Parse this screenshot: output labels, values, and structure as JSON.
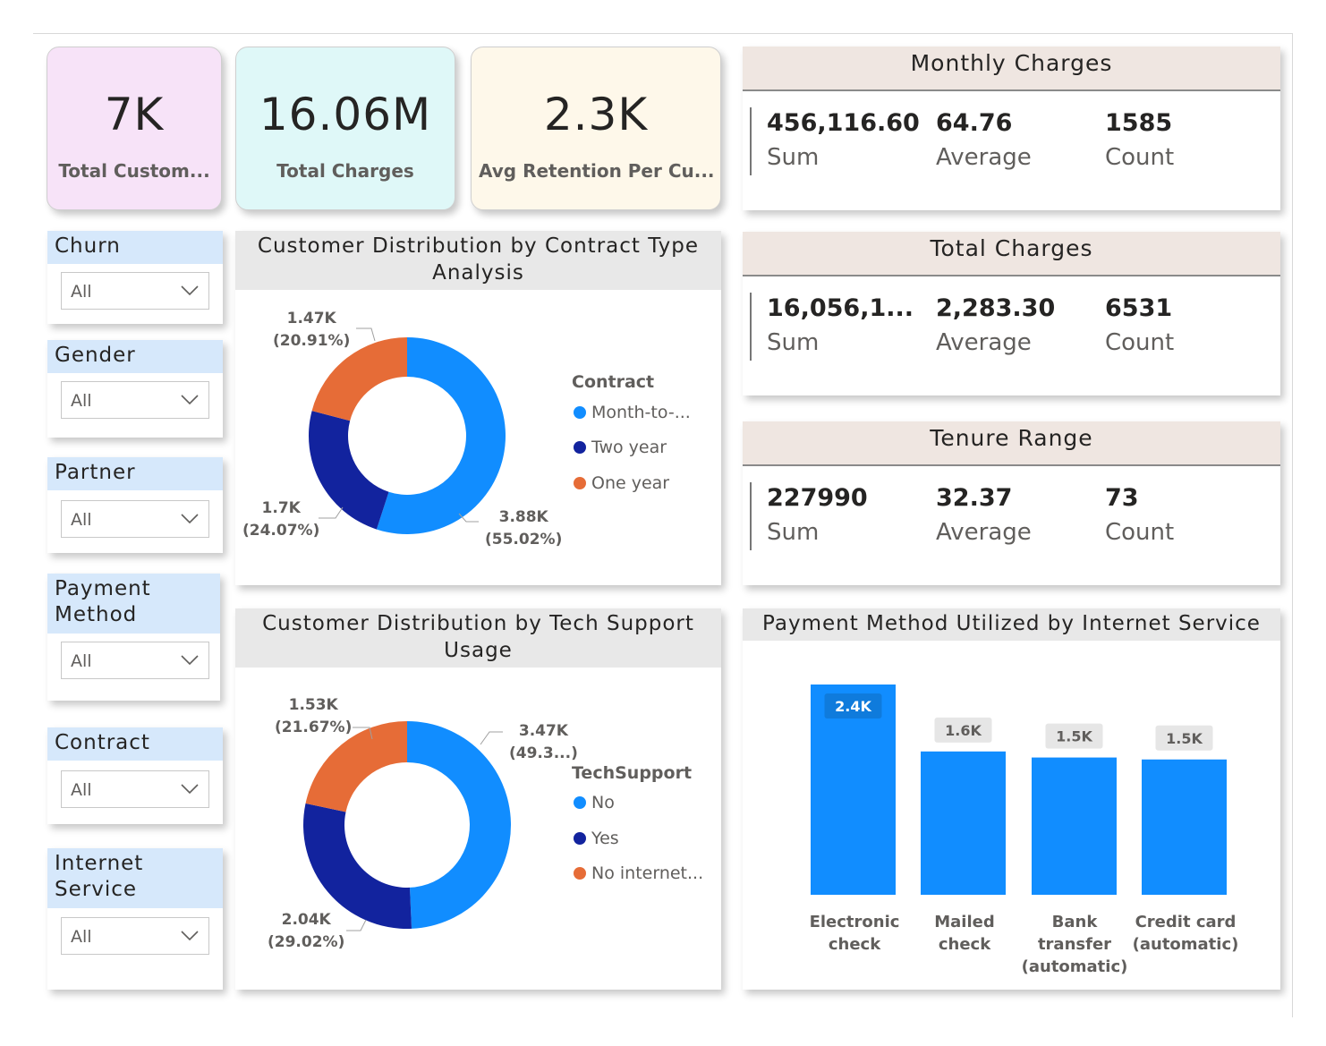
{
  "kpis": [
    {
      "value": "7K",
      "label": "Total Custom...",
      "bg": "#f7e3f8"
    },
    {
      "value": "16.06M",
      "label": "Total Charges",
      "bg": "#dff8f8"
    },
    {
      "value": "2.3K",
      "label": "Avg Retention Per Cu...",
      "bg": "#fef8ea"
    }
  ],
  "stats": {
    "monthly": {
      "title": "Monthly Charges",
      "sum": "456,116.60",
      "avg": "64.76",
      "count": "1585",
      "sum_label": "Sum",
      "avg_label": "Average",
      "count_label": "Count"
    },
    "total": {
      "title": "Total Charges",
      "sum": "16,056,1...",
      "avg": "2,283.30",
      "count": "6531",
      "sum_label": "Sum",
      "avg_label": "Average",
      "count_label": "Count"
    },
    "tenure": {
      "title": "Tenure Range",
      "sum": "227990",
      "avg": "32.37",
      "count": "73",
      "sum_label": "Sum",
      "avg_label": "Average",
      "count_label": "Count"
    }
  },
  "slicers": [
    {
      "title": "Churn",
      "value": "All"
    },
    {
      "title": "Gender",
      "value": "All"
    },
    {
      "title": "Partner",
      "value": "All"
    },
    {
      "title_lines": [
        "Payment",
        "Method"
      ],
      "value": "All"
    },
    {
      "title": "Contract",
      "value": "All"
    },
    {
      "title_lines": [
        "Internet",
        "Service"
      ],
      "value": "All"
    }
  ],
  "colors": {
    "light_blue": "#118dff",
    "dark_blue": "#12239e",
    "orange": "#e66c37"
  },
  "chart_data": [
    {
      "type": "pie",
      "title_lines": [
        "Customer Distribution by Contract Type",
        "Analysis"
      ],
      "legend_title": "Contract",
      "labels": [
        "Month-to-...",
        "Two year",
        "One year"
      ],
      "values": [
        3875,
        1695,
        1473
      ],
      "percents": [
        55.02,
        24.07,
        20.91
      ],
      "data_labels": [
        {
          "value": "3.88K",
          "pct": "(55.02%)"
        },
        {
          "value": "1.7K",
          "pct": "(24.07%)"
        },
        {
          "value": "1.47K",
          "pct": "(20.91%)"
        }
      ]
    },
    {
      "type": "pie",
      "title_lines": [
        "Customer Distribution by Tech Support",
        "Usage"
      ],
      "legend_title": "TechSupport",
      "labels": [
        "No",
        "Yes",
        "No internet..."
      ],
      "values": [
        3473,
        2044,
        1526
      ],
      "percents": [
        49.31,
        29.02,
        21.67
      ],
      "data_labels": [
        {
          "value": "3.47K",
          "pct": "(49.3...)"
        },
        {
          "value": "2.04K",
          "pct": "(29.02%)"
        },
        {
          "value": "1.53K",
          "pct": "(21.67%)"
        }
      ]
    },
    {
      "type": "bar",
      "title": "Payment Method Utilized by Internet Service",
      "categories": [
        [
          "Electronic",
          "check"
        ],
        [
          "Mailed",
          "check"
        ],
        [
          "Bank",
          "transfer",
          "(automatic)"
        ],
        [
          "Credit card",
          "(automatic)"
        ]
      ],
      "values": [
        2365,
        1612,
        1544,
        1522
      ],
      "data_labels": [
        "2.4K",
        "1.6K",
        "1.5K",
        "1.5K"
      ],
      "ylim": [
        0,
        2365
      ]
    }
  ]
}
